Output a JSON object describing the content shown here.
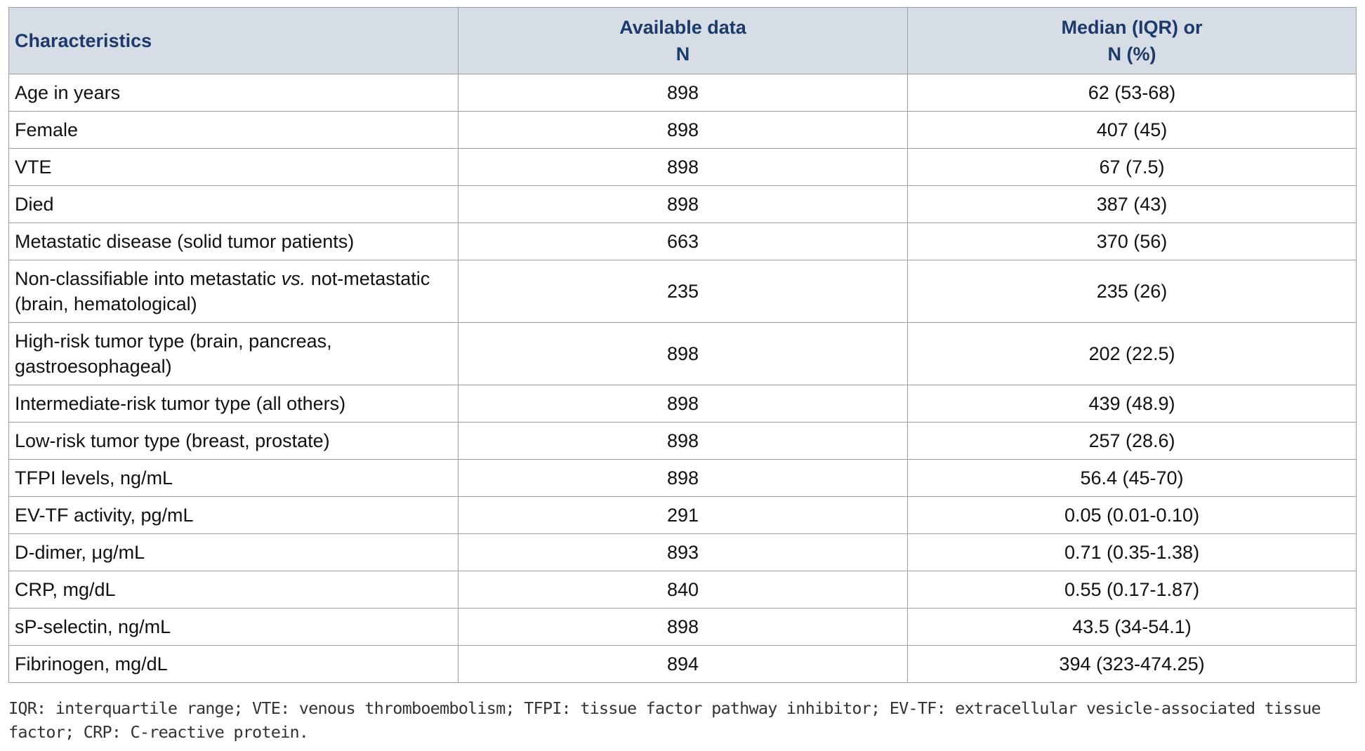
{
  "table": {
    "header": [
      [
        "Characteristics"
      ],
      [
        "Available data",
        "N"
      ],
      [
        "Median (IQR) or",
        "N (%)"
      ]
    ],
    "rows": [
      [
        [
          "Age in years"
        ],
        898,
        "62 (53-68)"
      ],
      [
        [
          "Female"
        ],
        898,
        "407 (45)"
      ],
      [
        [
          "VTE"
        ],
        898,
        "67 (7.5)"
      ],
      [
        [
          "Died"
        ],
        898,
        "387 (43)"
      ],
      [
        [
          "Metastatic disease (solid tumor patients)"
        ],
        663,
        "370 (56)"
      ],
      [
        [
          "Non-classifiable into metastatic ",
          "vs.",
          " not-metastatic (brain, hematological)"
        ],
        235,
        "235 (26)"
      ],
      [
        [
          "High-risk tumor type (brain, pancreas, gastroesophageal)"
        ],
        898,
        "202 (22.5)"
      ],
      [
        [
          "Intermediate-risk tumor type (all others)"
        ],
        898,
        "439 (48.9)"
      ],
      [
        [
          "Low-risk tumor type (breast, prostate)"
        ],
        898,
        "257 (28.6)"
      ],
      [
        [
          "TFPI levels, ng/mL"
        ],
        898,
        "56.4 (45-70)"
      ],
      [
        [
          "EV-TF activity, pg/mL"
        ],
        291,
        "0.05 (0.01-0.10)"
      ],
      [
        [
          "D-dimer, μg/mL"
        ],
        893,
        "0.71 (0.35-1.38)"
      ],
      [
        [
          "CRP, mg/dL"
        ],
        840,
        "0.55 (0.17-1.87)"
      ],
      [
        [
          "sP-selectin, ng/mL"
        ],
        898,
        "43.5 (34-54.1)"
      ],
      [
        [
          "Fibrinogen, mg/dL"
        ],
        894,
        "394 (323-474.25)"
      ]
    ]
  },
  "footnote": "IQR: interquartile range; VTE: venous thromboembolism; TFPI: tissue factor pathway inhibitor; EV-TF: extracellular vesicle-associated tissue factor; CRP: C-reactive protein."
}
